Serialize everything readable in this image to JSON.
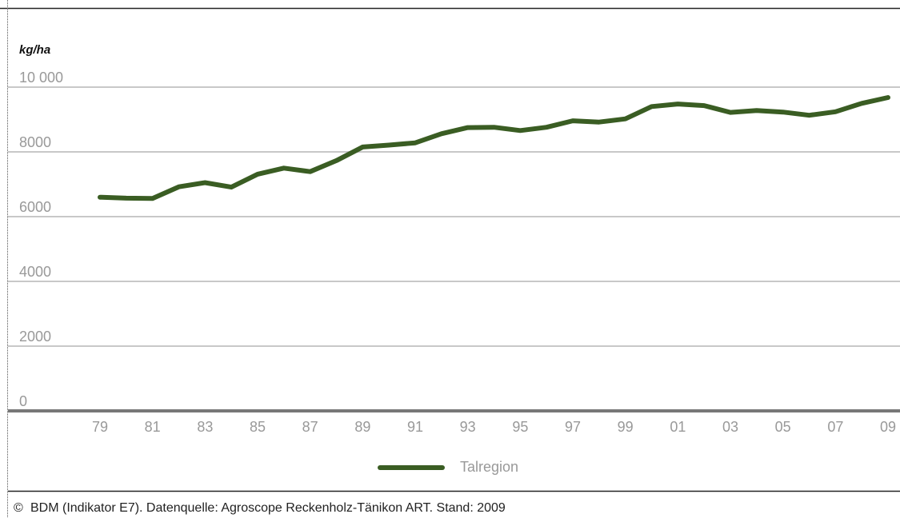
{
  "chart_data": {
    "type": "line",
    "unit_label": "kg/ha",
    "ylim": [
      0,
      10000
    ],
    "y_ticks": [
      0,
      2000,
      4000,
      6000,
      8000,
      10000
    ],
    "y_tick_labels": [
      "0",
      "2000",
      "4000",
      "6000",
      "8000",
      "10 000"
    ],
    "x": [
      1979,
      1980,
      1981,
      1982,
      1983,
      1984,
      1985,
      1986,
      1987,
      1988,
      1989,
      1990,
      1991,
      1992,
      1993,
      1994,
      1995,
      1996,
      1997,
      1998,
      1999,
      2000,
      2001,
      2002,
      2003,
      2004,
      2005,
      2006,
      2007,
      2008,
      2009
    ],
    "x_tick_labels": [
      "79",
      "81",
      "83",
      "85",
      "87",
      "89",
      "91",
      "93",
      "95",
      "97",
      "99",
      "01",
      "03",
      "05",
      "07",
      "09"
    ],
    "series": [
      {
        "name": "Talregion",
        "color": "#3a5d23",
        "values": [
          6600,
          6570,
          6560,
          6920,
          7050,
          6910,
          7310,
          7500,
          7390,
          7730,
          8150,
          8210,
          8280,
          8560,
          8750,
          8760,
          8660,
          8760,
          8960,
          8920,
          9020,
          9400,
          9480,
          9430,
          9220,
          9280,
          9230,
          9130,
          9240,
          9500,
          9680
        ]
      }
    ],
    "legend": "bottom-center",
    "grid": true
  },
  "footer": {
    "copyright_symbol": "©",
    "source_text": "BDM (Indikator E7). Datenquelle: Agroscope Reckenholz-Tänikon ART. Stand: 2009"
  }
}
